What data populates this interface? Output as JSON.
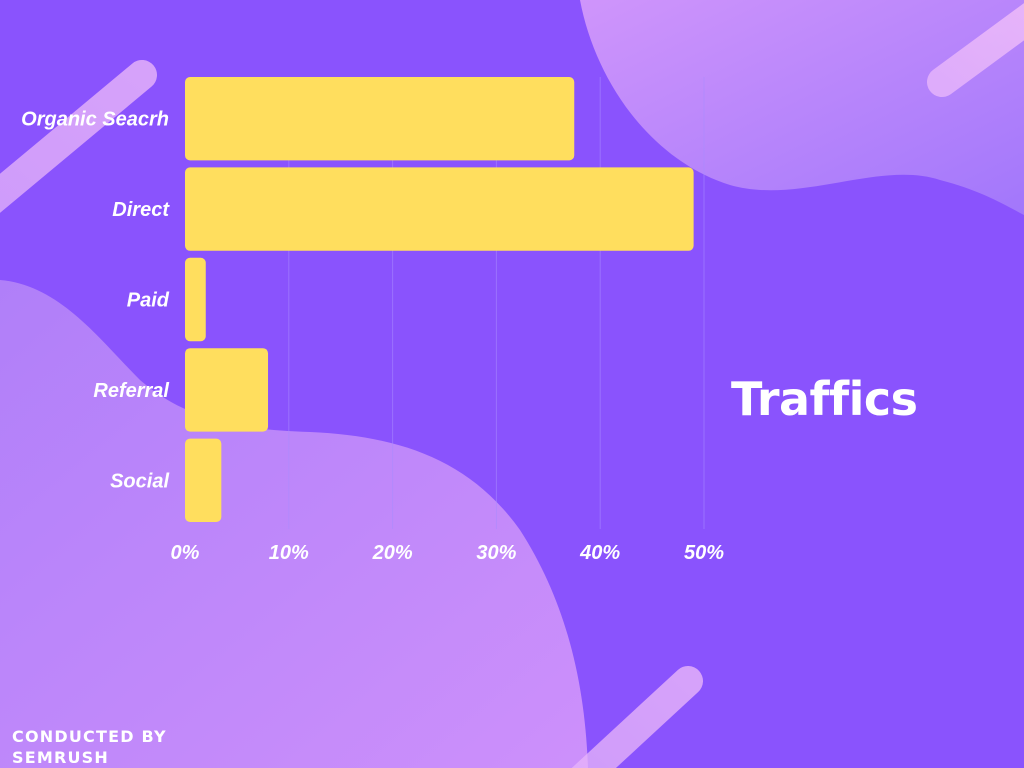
{
  "chart_data": {
    "type": "bar",
    "orientation": "horizontal",
    "title": "Traffics",
    "categories": [
      "Organic Seacrh",
      "Direct",
      "Paid",
      "Referral",
      "Social"
    ],
    "values": [
      37.5,
      49,
      2,
      8,
      3.5
    ],
    "xlim": [
      0,
      50
    ],
    "xticks": [
      0,
      10,
      20,
      30,
      40,
      50
    ],
    "xtick_labels": [
      "0%",
      "10%",
      "20%",
      "30%",
      "40%",
      "50%"
    ],
    "grid": true,
    "legend": "none",
    "colors": {
      "bar": "#ffde5e",
      "background": "#8a53fd",
      "gridline": "#a98bff"
    }
  },
  "footer": {
    "text": "CONDUCTED BY SEMRUSH"
  }
}
